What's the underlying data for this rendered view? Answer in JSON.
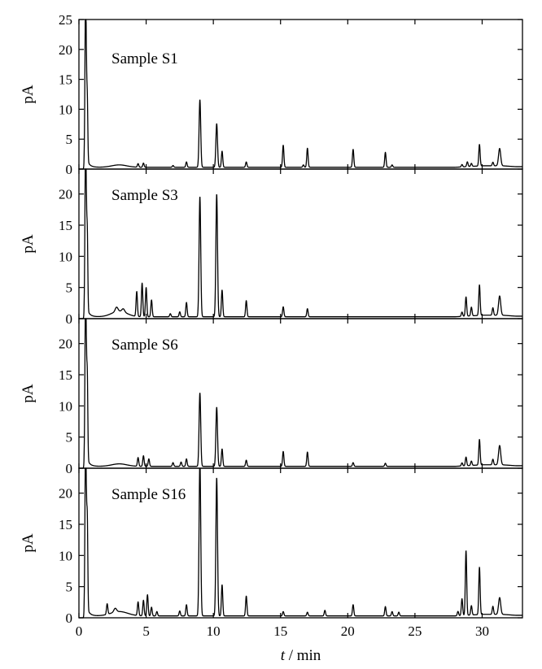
{
  "chart_data": {
    "type": "line",
    "title": "",
    "xlabel_italic": "t",
    "xlabel_rest": " / min",
    "xlim": [
      0,
      33
    ],
    "x_ticks": [
      0,
      5,
      10,
      15,
      20,
      25,
      30
    ],
    "panels": [
      {
        "name": "Sample S1",
        "ylabel": "pA",
        "ylim": [
          0,
          25
        ],
        "y_ticks": [
          0,
          5,
          10,
          15,
          20,
          25
        ],
        "baseline": 0.3,
        "hump": {
          "center": 3.0,
          "width": 0.8,
          "height": 0.4
        },
        "peaks": [
          [
            0.5,
            30,
            0.05
          ],
          [
            0.62,
            10,
            0.04
          ],
          [
            4.4,
            0.6,
            0.05
          ],
          [
            4.8,
            0.7,
            0.05
          ],
          [
            7.0,
            0.3,
            0.05
          ],
          [
            8.0,
            0.9,
            0.05
          ],
          [
            9.0,
            11.3,
            0.06
          ],
          [
            10.25,
            7.3,
            0.06
          ],
          [
            10.65,
            2.7,
            0.05
          ],
          [
            12.45,
            0.9,
            0.05
          ],
          [
            15.2,
            3.7,
            0.05
          ],
          [
            16.7,
            0.4,
            0.05
          ],
          [
            17.0,
            3.2,
            0.05
          ],
          [
            20.4,
            3.0,
            0.05
          ],
          [
            22.8,
            2.5,
            0.05
          ],
          [
            23.3,
            0.4,
            0.05
          ],
          [
            28.5,
            0.4,
            0.05
          ],
          [
            28.9,
            0.8,
            0.05
          ],
          [
            29.2,
            0.5,
            0.05
          ],
          [
            29.8,
            3.6,
            0.05
          ],
          [
            30.8,
            0.6,
            0.05
          ],
          [
            31.3,
            2.9,
            0.08
          ]
        ]
      },
      {
        "name": "Sample S3",
        "ylabel": "pA",
        "ylim": [
          0,
          24
        ],
        "y_ticks": [
          0,
          5,
          10,
          15,
          20
        ],
        "baseline": 0.3,
        "hump": {
          "center": 3.0,
          "width": 0.8,
          "height": 0.9
        },
        "peaks": [
          [
            0.5,
            30,
            0.05
          ],
          [
            0.62,
            12,
            0.04
          ],
          [
            2.8,
            0.7,
            0.1
          ],
          [
            3.3,
            0.5,
            0.1
          ],
          [
            4.3,
            4.0,
            0.05
          ],
          [
            4.7,
            5.4,
            0.05
          ],
          [
            5.0,
            4.7,
            0.05
          ],
          [
            5.4,
            2.7,
            0.05
          ],
          [
            6.8,
            0.5,
            0.05
          ],
          [
            7.5,
            0.8,
            0.05
          ],
          [
            8.0,
            2.3,
            0.05
          ],
          [
            9.0,
            19.3,
            0.06
          ],
          [
            10.25,
            19.7,
            0.06
          ],
          [
            10.65,
            4.3,
            0.05
          ],
          [
            12.45,
            2.6,
            0.05
          ],
          [
            15.2,
            1.6,
            0.05
          ],
          [
            17.0,
            1.3,
            0.05
          ],
          [
            28.5,
            0.7,
            0.05
          ],
          [
            28.8,
            3.1,
            0.05
          ],
          [
            29.2,
            1.4,
            0.05
          ],
          [
            29.8,
            4.9,
            0.05
          ],
          [
            30.8,
            1.2,
            0.05
          ],
          [
            31.3,
            3.1,
            0.08
          ]
        ]
      },
      {
        "name": "Sample S6",
        "ylabel": "pA",
        "ylim": [
          0,
          24
        ],
        "y_ticks": [
          0,
          5,
          10,
          15,
          20
        ],
        "baseline": 0.3,
        "hump": {
          "center": 3.0,
          "width": 0.8,
          "height": 0.4
        },
        "peaks": [
          [
            0.5,
            30,
            0.05
          ],
          [
            0.62,
            13,
            0.04
          ],
          [
            4.4,
            1.4,
            0.05
          ],
          [
            4.8,
            1.7,
            0.05
          ],
          [
            5.2,
            1.2,
            0.05
          ],
          [
            7.0,
            0.6,
            0.05
          ],
          [
            7.6,
            0.7,
            0.05
          ],
          [
            8.0,
            1.2,
            0.05
          ],
          [
            9.0,
            11.8,
            0.06
          ],
          [
            10.25,
            9.5,
            0.06
          ],
          [
            10.65,
            2.8,
            0.05
          ],
          [
            12.45,
            1.0,
            0.05
          ],
          [
            15.2,
            2.4,
            0.05
          ],
          [
            17.0,
            2.3,
            0.05
          ],
          [
            20.4,
            0.6,
            0.05
          ],
          [
            22.8,
            0.5,
            0.05
          ],
          [
            28.5,
            0.5,
            0.05
          ],
          [
            28.8,
            1.4,
            0.05
          ],
          [
            29.2,
            0.7,
            0.05
          ],
          [
            29.8,
            4.1,
            0.05
          ],
          [
            30.8,
            0.9,
            0.05
          ],
          [
            31.3,
            3.1,
            0.08
          ]
        ]
      },
      {
        "name": "Sample S16",
        "ylabel": "pA",
        "ylim": [
          0,
          24
        ],
        "y_ticks": [
          0,
          5,
          10,
          15,
          20
        ],
        "baseline": 0.3,
        "hump": {
          "center": 3.0,
          "width": 0.9,
          "height": 0.7
        },
        "peaks": [
          [
            0.5,
            30,
            0.05
          ],
          [
            0.62,
            14,
            0.04
          ],
          [
            2.1,
            1.7,
            0.05
          ],
          [
            2.7,
            0.6,
            0.1
          ],
          [
            4.4,
            2.2,
            0.05
          ],
          [
            4.8,
            2.5,
            0.05
          ],
          [
            5.1,
            3.4,
            0.05
          ],
          [
            5.4,
            1.4,
            0.05
          ],
          [
            5.8,
            0.7,
            0.05
          ],
          [
            7.5,
            0.8,
            0.05
          ],
          [
            8.0,
            1.8,
            0.05
          ],
          [
            9.0,
            25,
            0.06
          ],
          [
            10.25,
            22.2,
            0.06
          ],
          [
            10.65,
            5.0,
            0.05
          ],
          [
            12.45,
            3.2,
            0.05
          ],
          [
            15.2,
            0.7,
            0.05
          ],
          [
            17.0,
            0.6,
            0.05
          ],
          [
            18.3,
            0.9,
            0.05
          ],
          [
            20.4,
            1.8,
            0.05
          ],
          [
            22.8,
            1.5,
            0.05
          ],
          [
            23.3,
            0.7,
            0.05
          ],
          [
            23.8,
            0.6,
            0.05
          ],
          [
            28.2,
            0.7,
            0.05
          ],
          [
            28.5,
            2.7,
            0.05
          ],
          [
            28.8,
            10.4,
            0.05
          ],
          [
            29.2,
            1.5,
            0.05
          ],
          [
            29.8,
            7.6,
            0.05
          ],
          [
            30.8,
            1.3,
            0.05
          ],
          [
            31.3,
            2.7,
            0.08
          ]
        ]
      }
    ]
  }
}
